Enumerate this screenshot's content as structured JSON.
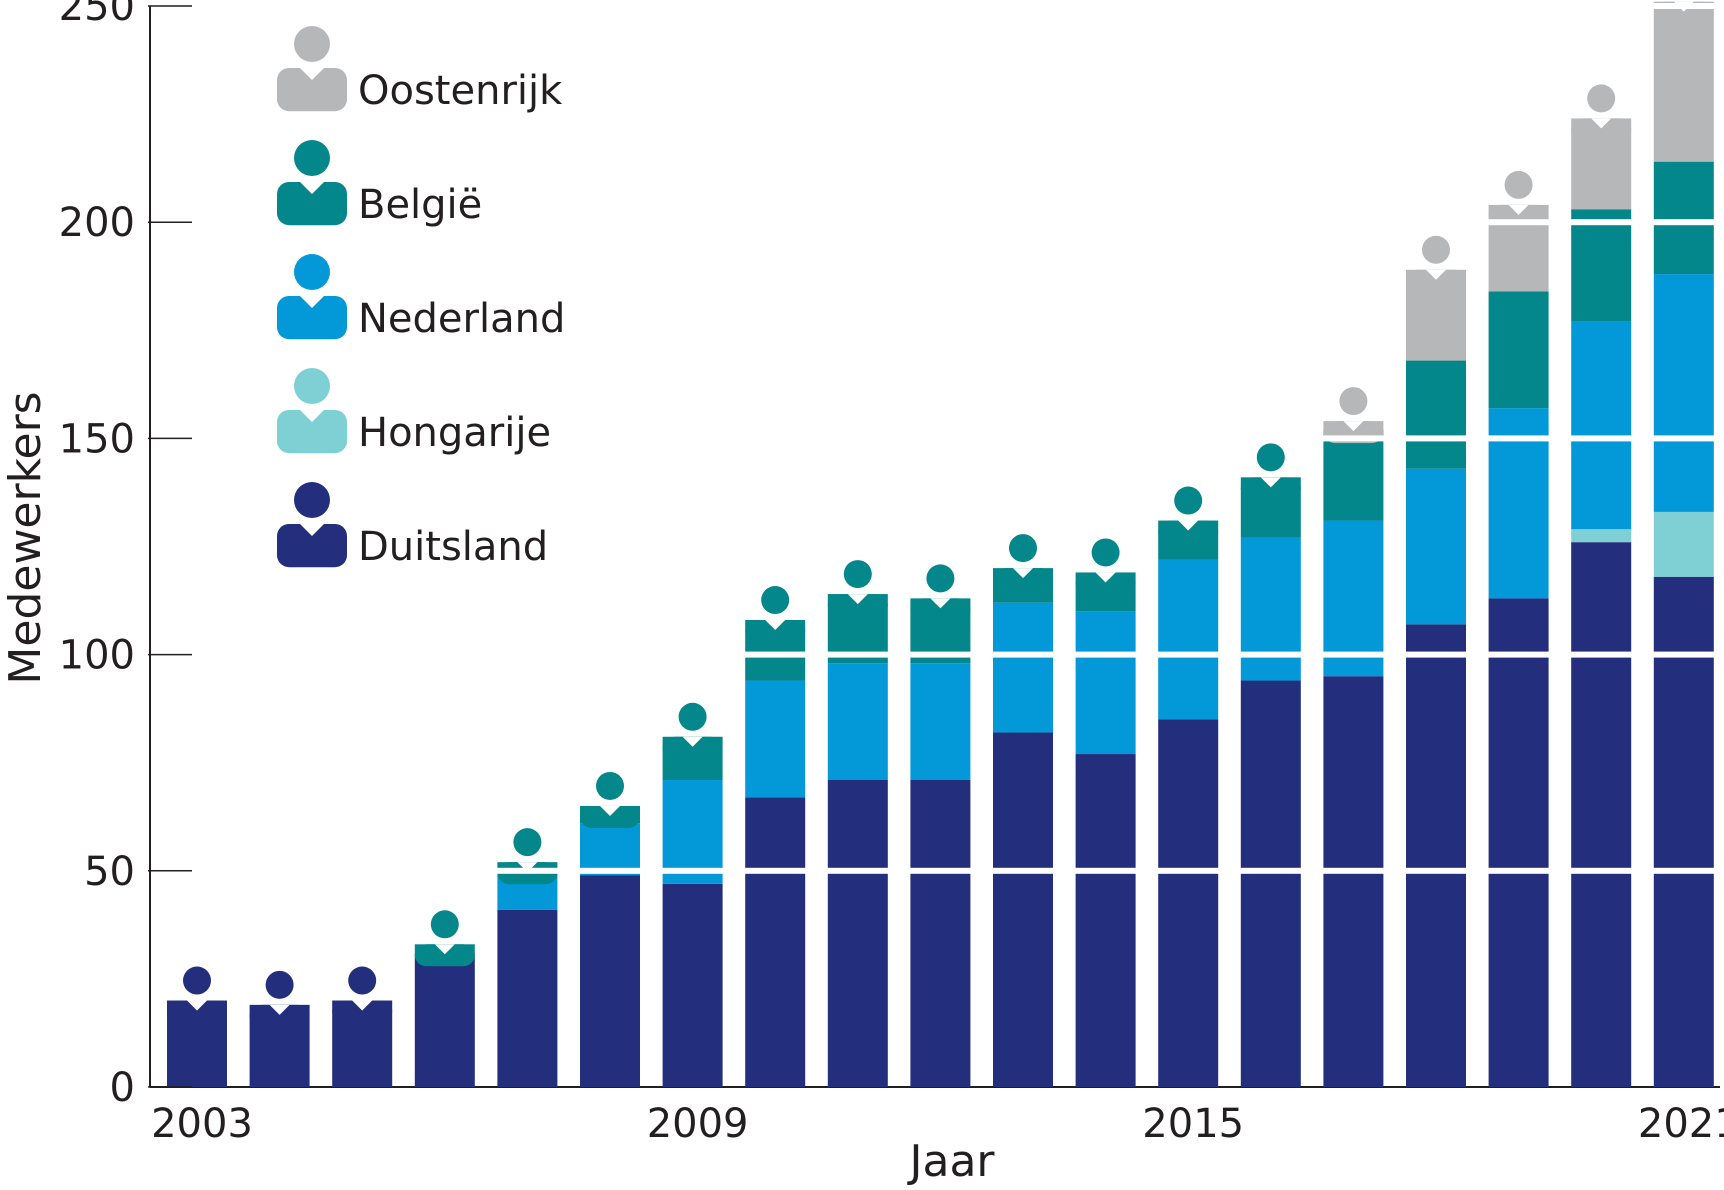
{
  "chart_data": {
    "type": "bar",
    "stacked": true,
    "title": "",
    "xlabel": "Jaar",
    "ylabel": "Medewerkers",
    "ylim": [
      0,
      250
    ],
    "yticks": [
      0,
      50,
      100,
      150,
      200,
      250
    ],
    "xticks": [
      "2003",
      "2009",
      "2015",
      "2021"
    ],
    "grid": false,
    "legend_position": "top-left",
    "categories": [
      "2003",
      "2004",
      "2005",
      "2006",
      "2007",
      "2008",
      "2009",
      "2010",
      "2011",
      "2012",
      "2013",
      "2014",
      "2015",
      "2016",
      "2017",
      "2018",
      "2019",
      "2020",
      "2021"
    ],
    "series": [
      {
        "name": "Duitsland",
        "color": "#232e7c",
        "values": [
          20,
          19,
          20,
          31,
          41,
          49,
          47,
          67,
          71,
          71,
          82,
          77,
          85,
          94,
          95,
          107,
          113,
          126,
          118
        ]
      },
      {
        "name": "Hongarije",
        "color": "#7fd0d4",
        "values": [
          0,
          0,
          0,
          0,
          0,
          0,
          0,
          0,
          0,
          0,
          0,
          0,
          0,
          0,
          0,
          0,
          0,
          3,
          15
        ]
      },
      {
        "name": "Nederland",
        "color": "#0398d8",
        "values": [
          0,
          0,
          0,
          0,
          8,
          12,
          24,
          27,
          27,
          27,
          30,
          33,
          37,
          33,
          36,
          36,
          44,
          48,
          55
        ]
      },
      {
        "name": "België",
        "color": "#03878a",
        "values": [
          0,
          0,
          0,
          2,
          3,
          4,
          10,
          14,
          16,
          15,
          8,
          9,
          9,
          14,
          21,
          25,
          27,
          26,
          26
        ]
      },
      {
        "name": "Oostenrijk",
        "color": "#b6b7b9",
        "values": [
          0,
          0,
          0,
          0,
          0,
          0,
          0,
          0,
          0,
          0,
          0,
          0,
          0,
          0,
          2,
          21,
          20,
          21,
          37
        ]
      }
    ],
    "legend": [
      {
        "name": "Oostenrijk",
        "color": "#b6b7b9"
      },
      {
        "name": "België",
        "color": "#03878a"
      },
      {
        "name": "Nederland",
        "color": "#0398d8"
      },
      {
        "name": "Hongarije",
        "color": "#7fd0d4"
      },
      {
        "name": "Duitsland",
        "color": "#232e7c"
      }
    ]
  }
}
